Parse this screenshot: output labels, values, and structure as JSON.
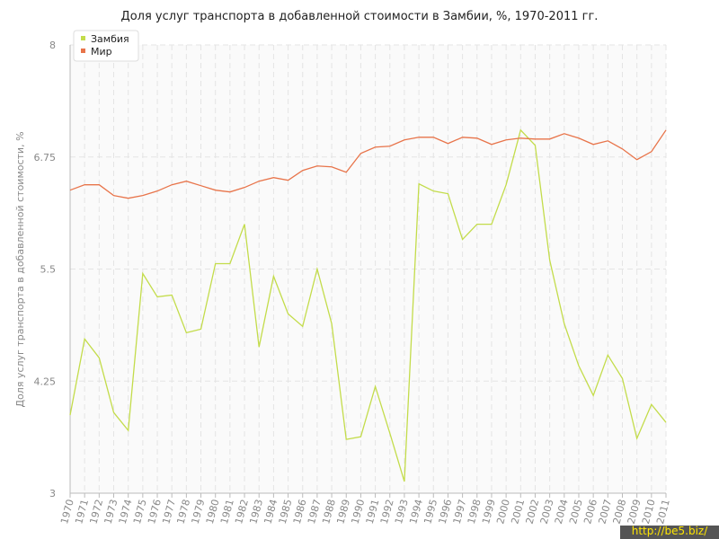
{
  "chart_data": {
    "type": "line",
    "title": "Доля услуг транспорта в добавленной стоимости в Замбии, %, 1970-2011 гг.",
    "y_label": "Доля услуг транспорта в добавленной стоимости, %",
    "categories": [
      "1970",
      "1971",
      "1972",
      "1973",
      "1974",
      "1975",
      "1976",
      "1977",
      "1978",
      "1979",
      "1980",
      "1981",
      "1982",
      "1983",
      "1984",
      "1985",
      "1986",
      "1987",
      "1988",
      "1989",
      "1990",
      "1991",
      "1992",
      "1993",
      "1994",
      "1995",
      "1996",
      "1997",
      "1998",
      "1999",
      "2000",
      "2001",
      "2002",
      "2003",
      "2004",
      "2005",
      "2006",
      "2007",
      "2008",
      "2009",
      "2010",
      "2011"
    ],
    "series": [
      {
        "name": "Замбия",
        "color": "#c3dc4a",
        "values": [
          3.87,
          4.72,
          4.51,
          3.9,
          3.7,
          5.45,
          5.19,
          5.21,
          4.79,
          4.83,
          5.56,
          5.56,
          6.0,
          4.63,
          5.42,
          5.0,
          4.86,
          5.5,
          4.89,
          3.6,
          3.63,
          4.19,
          3.67,
          3.13,
          6.45,
          6.37,
          6.34,
          5.83,
          6.0,
          6.0,
          6.44,
          7.05,
          6.88,
          5.6,
          4.89,
          4.42,
          4.09,
          4.54,
          4.28,
          3.61,
          3.99,
          3.79
        ]
      },
      {
        "name": "Мир",
        "color": "#e8744a",
        "values": [
          6.38,
          6.44,
          6.44,
          6.32,
          6.29,
          6.32,
          6.37,
          6.44,
          6.48,
          6.43,
          6.38,
          6.36,
          6.41,
          6.48,
          6.52,
          6.49,
          6.6,
          6.65,
          6.64,
          6.58,
          6.79,
          6.86,
          6.87,
          6.94,
          6.97,
          6.97,
          6.9,
          6.97,
          6.96,
          6.89,
          6.94,
          6.96,
          6.95,
          6.95,
          7.01,
          6.96,
          6.89,
          6.93,
          6.84,
          6.72,
          6.81,
          7.05
        ]
      }
    ],
    "ylim": [
      3,
      8
    ],
    "yticks": [
      3,
      4.25,
      5.5,
      6.75,
      8
    ],
    "grid": true,
    "legend": "top-left",
    "watermark": "http://be5.biz/"
  }
}
